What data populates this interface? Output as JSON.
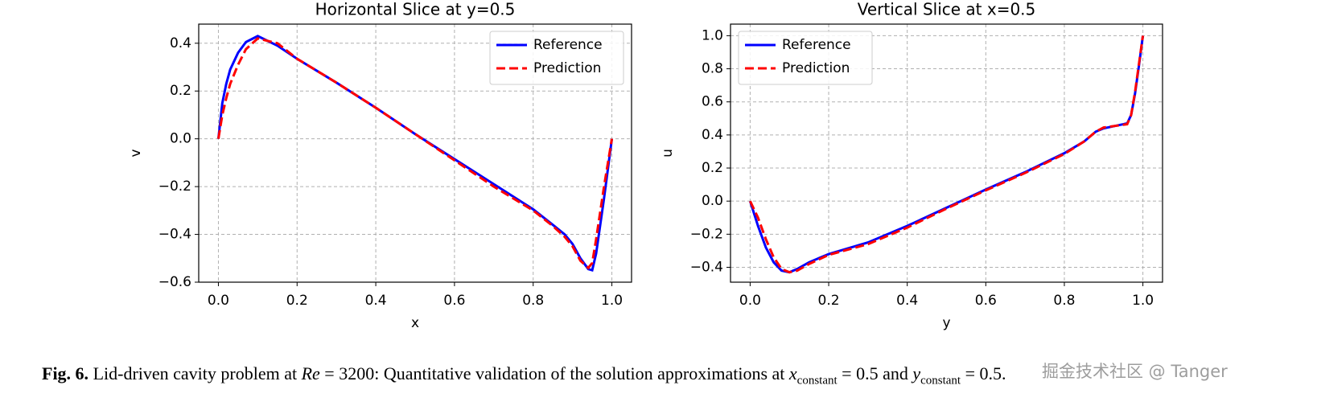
{
  "chart_data": [
    {
      "type": "line",
      "title": "Horizontal Slice at y=0.5",
      "xlabel": "x",
      "ylabel": "v",
      "x": [
        0,
        0.01,
        0.02,
        0.03,
        0.05,
        0.07,
        0.1,
        0.15,
        0.2,
        0.3,
        0.4,
        0.5,
        0.6,
        0.7,
        0.8,
        0.85,
        0.88,
        0.9,
        0.92,
        0.94,
        0.95,
        0.96,
        0.98,
        1.0
      ],
      "series": [
        {
          "name": "Reference",
          "color": "#0000ff",
          "linestyle": "solid",
          "values": [
            0,
            0.15,
            0.23,
            0.29,
            0.36,
            0.405,
            0.43,
            0.39,
            0.335,
            0.235,
            0.13,
            0.02,
            -0.085,
            -0.19,
            -0.295,
            -0.36,
            -0.4,
            -0.44,
            -0.5,
            -0.545,
            -0.55,
            -0.48,
            -0.25,
            0
          ]
        },
        {
          "name": "Prediction",
          "color": "#ff0000",
          "linestyle": "dashed",
          "values": [
            0,
            0.1,
            0.17,
            0.23,
            0.31,
            0.375,
            0.42,
            0.4,
            0.335,
            0.235,
            0.13,
            0.02,
            -0.09,
            -0.2,
            -0.3,
            -0.365,
            -0.41,
            -0.45,
            -0.51,
            -0.54,
            -0.52,
            -0.42,
            -0.2,
            0
          ]
        }
      ],
      "xlim": [
        -0.05,
        1.05
      ],
      "ylim": [
        -0.6,
        0.48
      ],
      "xticks": [
        {
          "value": 0,
          "label": "0.0"
        },
        0.2,
        0.4,
        0.6,
        0.8,
        {
          "value": 1,
          "label": "1.0"
        }
      ],
      "yticks": [
        {
          "value": -0.6,
          "label": "−0.6"
        },
        {
          "value": -0.4,
          "label": "−0.4"
        },
        {
          "value": -0.2,
          "label": "−0.2"
        },
        {
          "value": 0,
          "label": "0.0"
        },
        0.2,
        0.4
      ],
      "grid": true,
      "legend": "upper right"
    },
    {
      "type": "line",
      "title": "Vertical Slice at x=0.5",
      "xlabel": "y",
      "ylabel": "u",
      "x": [
        0,
        0.02,
        0.04,
        0.06,
        0.08,
        0.1,
        0.12,
        0.15,
        0.2,
        0.3,
        0.4,
        0.5,
        0.6,
        0.7,
        0.8,
        0.85,
        0.88,
        0.9,
        0.93,
        0.96,
        0.97,
        0.98,
        0.99,
        1.0
      ],
      "series": [
        {
          "name": "Reference",
          "color": "#0000ff",
          "linestyle": "solid",
          "values": [
            0,
            -0.15,
            -0.28,
            -0.37,
            -0.42,
            -0.43,
            -0.41,
            -0.37,
            -0.32,
            -0.25,
            -0.15,
            -0.04,
            0.07,
            0.175,
            0.29,
            0.36,
            0.42,
            0.44,
            0.455,
            0.47,
            0.52,
            0.65,
            0.82,
            1.0
          ]
        },
        {
          "name": "Prediction",
          "color": "#ff0000",
          "linestyle": "dashed",
          "values": [
            0,
            -0.1,
            -0.23,
            -0.34,
            -0.41,
            -0.43,
            -0.42,
            -0.38,
            -0.325,
            -0.26,
            -0.16,
            -0.045,
            0.065,
            0.17,
            0.285,
            0.36,
            0.42,
            0.445,
            0.455,
            0.465,
            0.52,
            0.66,
            0.83,
            1.0
          ]
        }
      ],
      "xlim": [
        -0.05,
        1.05
      ],
      "ylim": [
        -0.49,
        1.07
      ],
      "xticks": [
        {
          "value": 0,
          "label": "0.0"
        },
        0.2,
        0.4,
        0.6,
        0.8,
        {
          "value": 1,
          "label": "1.0"
        }
      ],
      "yticks": [
        {
          "value": -0.4,
          "label": "−0.4"
        },
        {
          "value": -0.2,
          "label": "−0.2"
        },
        {
          "value": 0,
          "label": "0.0"
        },
        0.2,
        0.4,
        0.6,
        0.8,
        {
          "value": 1,
          "label": "1.0"
        }
      ],
      "grid": true,
      "legend": "upper left"
    }
  ],
  "caption": {
    "label": "Fig. 6.",
    "text1": " Lid-driven cavity problem at ",
    "re": "Re",
    "text2": " = 3200: Quantitative validation of the solution approximations at ",
    "xvar": "x",
    "xsub": "constant",
    "text3": " = 0.5 and ",
    "yvar": "y",
    "ysub": "constant",
    "text4": " = 0.5."
  },
  "watermark": "掘金技术社区 @ Tanger"
}
